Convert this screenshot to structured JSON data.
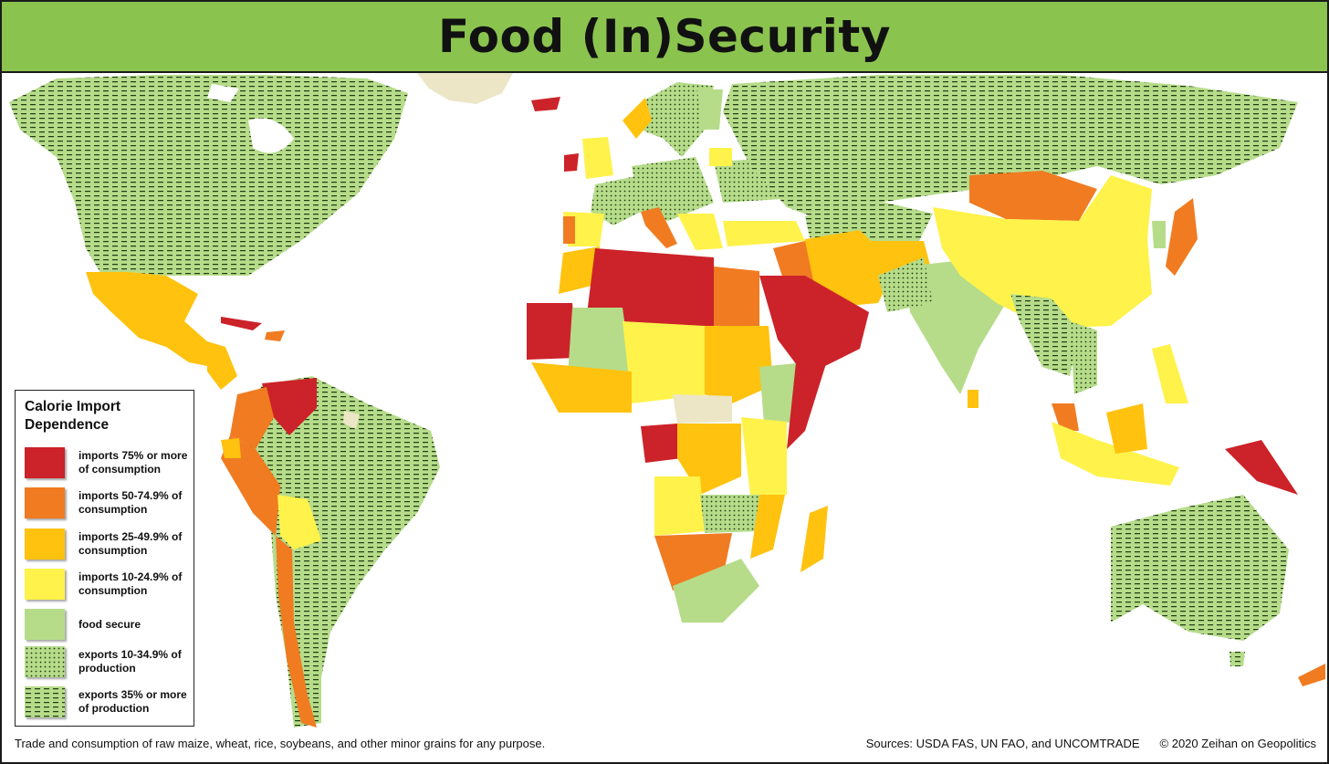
{
  "title": "Food (In)Security",
  "colors": {
    "title_bar": "#8bc34f",
    "imports_75": "#cc2229",
    "imports_50": "#f07b21",
    "imports_25": "#ffc20f",
    "imports_10": "#fff24a",
    "food_secure": "#b6dc8a",
    "exports_10": "#b6dc8a",
    "exports_35": "#b6dc8a",
    "no_data": "#ece6c7",
    "ocean": "#ffffff"
  },
  "legend": {
    "title": "Calorie Import Dependence",
    "items": [
      {
        "key": "imports_75",
        "color": "#cc2229",
        "pattern": "solid",
        "label": "imports 75% or more of consumption"
      },
      {
        "key": "imports_50",
        "color": "#f07b21",
        "pattern": "solid",
        "label": "imports 50-74.9% of consumption"
      },
      {
        "key": "imports_25",
        "color": "#ffc20f",
        "pattern": "solid",
        "label": "imports 25-49.9% of consumption"
      },
      {
        "key": "imports_10",
        "color": "#fff24a",
        "pattern": "solid",
        "label": "imports 10-24.9% of consumption"
      },
      {
        "key": "food_secure",
        "color": "#b6dc8a",
        "pattern": "solid",
        "label": "food secure"
      },
      {
        "key": "exports_10",
        "color": "#b6dc8a",
        "pattern": "dots",
        "label": "exports 10-34.9% of production"
      },
      {
        "key": "exports_35",
        "color": "#b6dc8a",
        "pattern": "dashes",
        "label": "exports 35% or more of production"
      }
    ]
  },
  "footer": {
    "note": "Trade and consumption of raw maize, wheat, rice, soybeans, and other minor grains for any purpose.",
    "sources": "Sources: USDA FAS, UN FAO, and UNCOMTRADE",
    "copyright": "© 2020 Zeihan on Geopolitics"
  }
}
